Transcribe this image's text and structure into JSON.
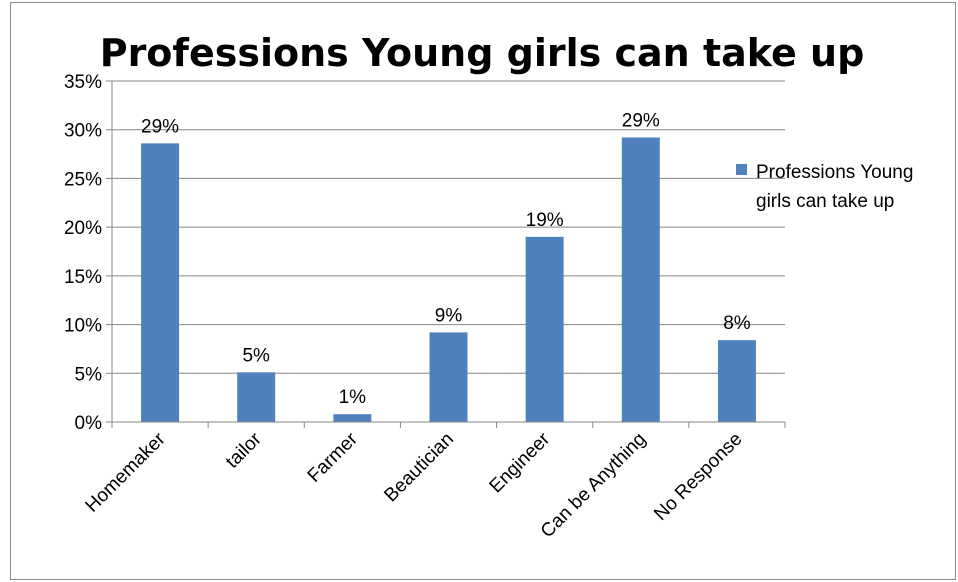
{
  "chart_data": {
    "type": "bar",
    "title": "Professions Young girls can take up",
    "categories": [
      "Homemaker",
      "tailor",
      "Farmer",
      "Beautician",
      "Engineer",
      "Can be Anything",
      "No Response"
    ],
    "series": [
      {
        "name": "Professions Young girls can take up",
        "values": [
          0.286,
          0.051,
          0.008,
          0.092,
          0.19,
          0.292,
          0.084
        ],
        "labels": [
          "29%",
          "5%",
          "1%",
          "9%",
          "19%",
          "29%",
          "8%"
        ],
        "color": "#4F81BD"
      }
    ],
    "ylim": [
      0,
      0.35
    ],
    "yticks": [
      "0%",
      "5%",
      "10%",
      "15%",
      "20%",
      "25%",
      "30%",
      "35%"
    ],
    "grid": true,
    "legend": "right"
  }
}
